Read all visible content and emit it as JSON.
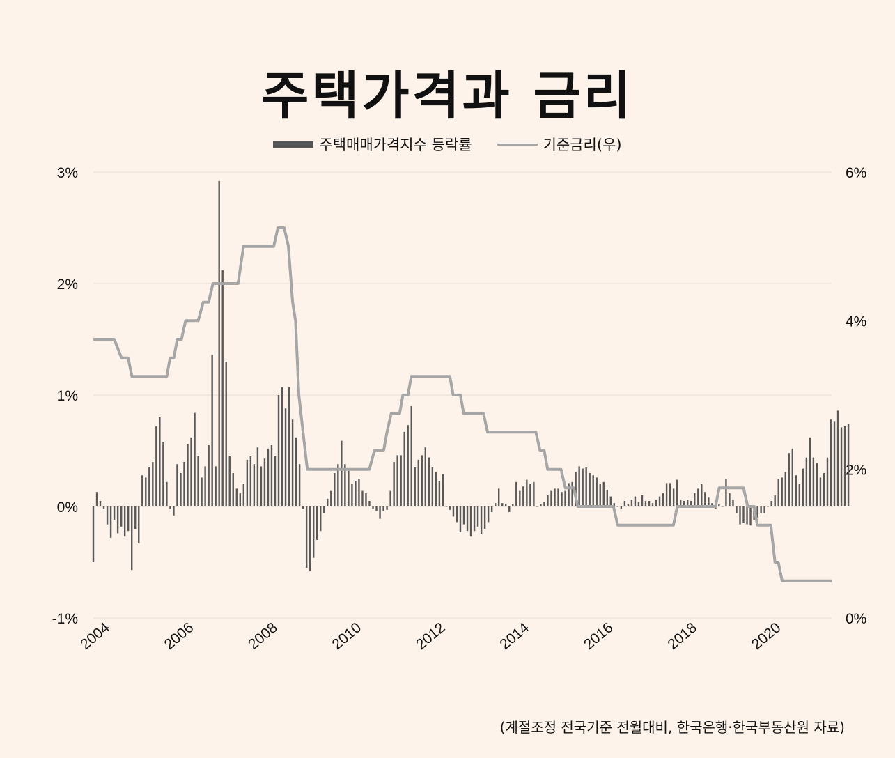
{
  "chart_data": {
    "type": "bar+line",
    "title": "주택가격과 금리",
    "legend": {
      "bar": "주택매매가격지수 등락률",
      "line": "기준금리(우)",
      "placement": "top-center"
    },
    "left_axis": {
      "ticks": [
        "3%",
        "2%",
        "1%",
        "0%",
        "-1%"
      ],
      "tick_values": [
        3,
        2,
        1,
        0,
        -1
      ],
      "ylim": [
        -1,
        3
      ]
    },
    "right_axis": {
      "ticks": [
        "6%",
        "4%",
        "2%",
        "0%"
      ],
      "tick_values": [
        6,
        4,
        2,
        0
      ],
      "ylim": [
        0,
        6
      ]
    },
    "x_ticks": [
      "2004",
      "2006",
      "2008",
      "2010",
      "2012",
      "2014",
      "2016",
      "2018",
      "2020"
    ],
    "x_tick_values": [
      2004,
      2006,
      2008,
      2010,
      2012,
      2014,
      2016,
      2018,
      2020
    ],
    "x_range": [
      2004,
      2021.6
    ],
    "grid": true,
    "series": [
      {
        "name": "주택매매가격지수 등락률",
        "kind": "bar",
        "start": 2004,
        "step_months": 1,
        "values": [
          -0.5,
          0.13,
          0.05,
          -0.02,
          -0.16,
          -0.28,
          -0.12,
          -0.24,
          -0.18,
          -0.27,
          -0.22,
          -0.57,
          -0.2,
          -0.33,
          0.28,
          0.26,
          0.35,
          0.4,
          0.72,
          0.8,
          0.58,
          0.22,
          -0.02,
          -0.08,
          0.38,
          0.3,
          0.4,
          0.56,
          0.62,
          0.84,
          0.45,
          0.26,
          0.36,
          0.55,
          1.36,
          0.36,
          2.92,
          2.12,
          1.3,
          0.45,
          0.3,
          0.16,
          0.12,
          0.2,
          0.42,
          0.45,
          0.38,
          0.53,
          0.36,
          0.43,
          0.52,
          0.55,
          0.45,
          1.0,
          1.07,
          0.88,
          1.07,
          0.78,
          0.62,
          0.38,
          -0.02,
          -0.55,
          -0.58,
          -0.46,
          -0.3,
          -0.22,
          -0.06,
          0.07,
          0.14,
          0.3,
          0.38,
          0.59,
          0.38,
          0.32,
          0.2,
          0.23,
          0.25,
          0.14,
          0.12,
          0.05,
          -0.02,
          -0.04,
          -0.11,
          -0.04,
          -0.03,
          0.14,
          0.4,
          0.46,
          0.46,
          0.67,
          0.73,
          0.9,
          0.35,
          0.42,
          0.46,
          0.53,
          0.44,
          0.35,
          0.31,
          0.23,
          0.29,
          0.0,
          -0.03,
          -0.09,
          -0.14,
          -0.23,
          -0.16,
          -0.22,
          -0.27,
          -0.22,
          -0.18,
          -0.25,
          -0.2,
          -0.14,
          -0.05,
          0.03,
          0.16,
          0.03,
          0.02,
          -0.05,
          0.02,
          0.22,
          0.14,
          0.18,
          0.24,
          0.2,
          0.22,
          0.0,
          0.02,
          0.04,
          0.1,
          0.14,
          0.16,
          0.16,
          0.13,
          0.14,
          0.21,
          0.22,
          0.31,
          0.36,
          0.34,
          0.35,
          0.3,
          0.28,
          0.26,
          0.2,
          0.22,
          0.15,
          0.09,
          0.03,
          0.0,
          -0.02,
          0.05,
          0.02,
          0.06,
          0.09,
          0.04,
          0.1,
          0.05,
          0.05,
          0.03,
          0.06,
          0.09,
          0.12,
          0.21,
          0.21,
          0.16,
          0.24,
          0.06,
          0.05,
          0.06,
          0.05,
          0.12,
          0.16,
          0.2,
          0.13,
          0.08,
          0.03,
          -0.02,
          0.02,
          0.0,
          0.25,
          0.12,
          0.06,
          -0.06,
          -0.16,
          -0.15,
          -0.16,
          -0.17,
          -0.12,
          -0.1,
          -0.06,
          -0.06,
          0.0,
          0.05,
          0.1,
          0.25,
          0.26,
          0.31,
          0.48,
          0.52,
          0.28,
          0.2,
          0.34,
          0.44,
          0.62,
          0.44,
          0.39,
          0.26,
          0.3,
          0.44,
          0.78,
          0.76,
          0.86,
          0.71,
          0.72,
          0.74
        ]
      },
      {
        "name": "기준금리(우)",
        "kind": "step-line",
        "axis": "right",
        "points": [
          [
            2004.0,
            3.75
          ],
          [
            2004.5,
            3.75
          ],
          [
            2004.67,
            3.5
          ],
          [
            2004.83,
            3.5
          ],
          [
            2004.92,
            3.25
          ],
          [
            2005.75,
            3.25
          ],
          [
            2005.83,
            3.5
          ],
          [
            2005.92,
            3.5
          ],
          [
            2006.0,
            3.75
          ],
          [
            2006.1,
            3.75
          ],
          [
            2006.2,
            4.0
          ],
          [
            2006.5,
            4.0
          ],
          [
            2006.62,
            4.25
          ],
          [
            2006.75,
            4.25
          ],
          [
            2006.85,
            4.5
          ],
          [
            2007.25,
            4.5
          ],
          [
            2007.45,
            4.5
          ],
          [
            2007.58,
            5.0
          ],
          [
            2008.3,
            5.0
          ],
          [
            2008.4,
            5.25
          ],
          [
            2008.55,
            5.25
          ],
          [
            2008.65,
            5.0
          ],
          [
            2008.75,
            4.25
          ],
          [
            2008.82,
            4.0
          ],
          [
            2008.9,
            3.0
          ],
          [
            2009.0,
            2.5
          ],
          [
            2009.1,
            2.0
          ],
          [
            2010.4,
            2.0
          ],
          [
            2010.58,
            2.0
          ],
          [
            2010.7,
            2.25
          ],
          [
            2010.92,
            2.25
          ],
          [
            2011.0,
            2.5
          ],
          [
            2011.1,
            2.75
          ],
          [
            2011.3,
            2.75
          ],
          [
            2011.38,
            3.0
          ],
          [
            2011.5,
            3.0
          ],
          [
            2011.58,
            3.25
          ],
          [
            2012.5,
            3.25
          ],
          [
            2012.58,
            3.0
          ],
          [
            2012.75,
            3.0
          ],
          [
            2012.83,
            2.75
          ],
          [
            2013.3,
            2.75
          ],
          [
            2013.4,
            2.5
          ],
          [
            2014.55,
            2.5
          ],
          [
            2014.65,
            2.25
          ],
          [
            2014.75,
            2.25
          ],
          [
            2014.83,
            2.0
          ],
          [
            2015.15,
            2.0
          ],
          [
            2015.25,
            1.75
          ],
          [
            2015.45,
            1.75
          ],
          [
            2015.55,
            1.5
          ],
          [
            2016.4,
            1.5
          ],
          [
            2016.5,
            1.25
          ],
          [
            2017.83,
            1.25
          ],
          [
            2017.92,
            1.5
          ],
          [
            2018.83,
            1.5
          ],
          [
            2018.92,
            1.75
          ],
          [
            2019.5,
            1.75
          ],
          [
            2019.6,
            1.5
          ],
          [
            2019.75,
            1.5
          ],
          [
            2019.83,
            1.25
          ],
          [
            2020.15,
            1.25
          ],
          [
            2020.25,
            0.75
          ],
          [
            2020.33,
            0.75
          ],
          [
            2020.42,
            0.5
          ],
          [
            2021.6,
            0.5
          ]
        ]
      }
    ]
  },
  "source_note": "(계절조정 전국기준 전월대비, 한국은행·한국부동산원 자료)",
  "colors": {
    "bar": "#595959",
    "line": "#a6a6a6",
    "grid": "#e6ddd4",
    "background": "#fdf3ea"
  }
}
